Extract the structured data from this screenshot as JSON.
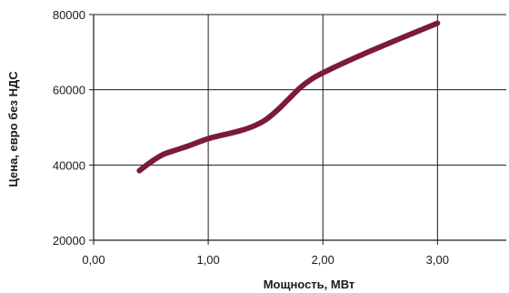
{
  "chart_data": {
    "type": "line",
    "title": "",
    "xlabel": "Мощность, МВт",
    "ylabel": "Цена, евро без НДС",
    "xlim": [
      0,
      3.6
    ],
    "ylim": [
      20000,
      80000
    ],
    "x_ticks": [
      0,
      1,
      2,
      3
    ],
    "x_tick_labels": [
      "0,00",
      "1,00",
      "2,00",
      "3,00"
    ],
    "y_ticks": [
      20000,
      40000,
      60000,
      80000
    ],
    "y_tick_labels": [
      "20000",
      "40000",
      "60000",
      "80000"
    ],
    "grid": true,
    "legend": "none",
    "series": [
      {
        "color": "#7b1a3a",
        "x": [
          0.4,
          0.5,
          0.6,
          0.7,
          0.8,
          0.9,
          1.0,
          1.1,
          1.2,
          1.3,
          1.4,
          1.5,
          1.6,
          1.7,
          1.8,
          1.9,
          2.0,
          2.2,
          2.4,
          2.6,
          2.8,
          3.0
        ],
        "y": [
          38500,
          40800,
          42700,
          43800,
          44800,
          45900,
          47000,
          47800,
          48500,
          49300,
          50400,
          52000,
          54500,
          57500,
          60500,
          62800,
          64500,
          67400,
          70100,
          72700,
          75200,
          77700
        ]
      }
    ]
  }
}
